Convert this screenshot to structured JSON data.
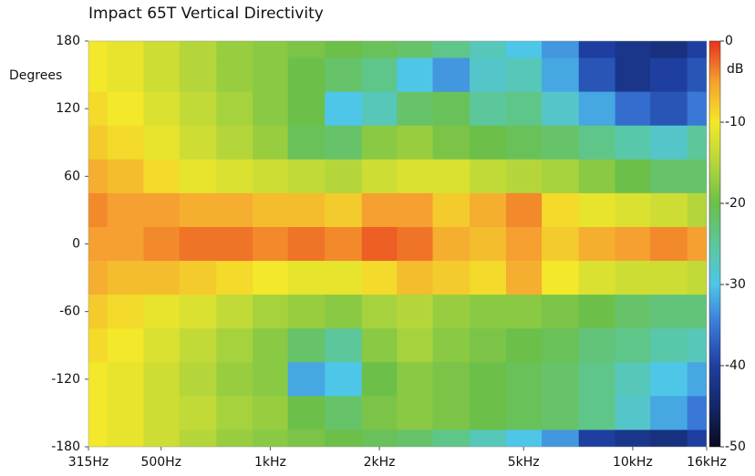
{
  "chart_data": {
    "type": "heatmap",
    "title": "Impact 65T Vertical Directivity",
    "y_label": "Degrees",
    "colorbar_label": "dB",
    "x_scale": "log",
    "xlim": [
      315,
      16000
    ],
    "xticks": [
      {
        "value": 315,
        "label": "315Hz"
      },
      {
        "value": 500,
        "label": "500Hz"
      },
      {
        "value": 1000,
        "label": "1kHz"
      },
      {
        "value": 2000,
        "label": "2kHz"
      },
      {
        "value": 5000,
        "label": "5kHz"
      },
      {
        "value": 10000,
        "label": "10kHz"
      },
      {
        "value": 16000,
        "label": "16kHz"
      }
    ],
    "ylim": [
      -180,
      180
    ],
    "yticks": [
      180,
      120,
      60,
      0,
      -60,
      -120,
      -180
    ],
    "zlim": [
      -50,
      0
    ],
    "zticks": [
      0,
      -10,
      -20,
      -30,
      -40,
      -50
    ],
    "colorscale": [
      [
        -50,
        "#0a0a22"
      ],
      [
        -45,
        "#142868"
      ],
      [
        -40,
        "#1e3fa0"
      ],
      [
        -35,
        "#3a78d8"
      ],
      [
        -30,
        "#4ec6e8"
      ],
      [
        -25,
        "#5cc79a"
      ],
      [
        -20,
        "#6cc04a"
      ],
      [
        -15,
        "#b5d63a"
      ],
      [
        -10,
        "#f3e82a"
      ],
      [
        -5,
        "#f5a030"
      ],
      [
        0,
        "#e8331c"
      ]
    ],
    "x": [
      315,
      400,
      500,
      630,
      800,
      1000,
      1250,
      1600,
      2000,
      2500,
      3150,
      4000,
      5000,
      6300,
      8000,
      10000,
      12500,
      16000
    ],
    "y": [
      180,
      150,
      120,
      90,
      60,
      30,
      0,
      -30,
      -60,
      -90,
      -120,
      -150,
      -180
    ],
    "z": [
      [
        -10,
        -11,
        -13,
        -15,
        -17,
        -18,
        -19,
        -20,
        -21,
        -22,
        -24,
        -27,
        -30,
        -33,
        -40,
        -42,
        -43,
        -40
      ],
      [
        -10,
        -11,
        -13,
        -15,
        -17,
        -18,
        -20,
        -22,
        -24,
        -30,
        -33,
        -28,
        -27,
        -32,
        -38,
        -42,
        -40,
        -38
      ],
      [
        -9,
        -10,
        -12,
        -14,
        -16,
        -18,
        -20,
        -30,
        -27,
        -22,
        -21,
        -25,
        -24,
        -28,
        -32,
        -36,
        -38,
        -35
      ],
      [
        -8,
        -9,
        -11,
        -13,
        -15,
        -17,
        -21,
        -22,
        -18,
        -17,
        -19,
        -20,
        -21,
        -22,
        -24,
        -26,
        -28,
        -25
      ],
      [
        -6,
        -7,
        -9,
        -11,
        -12,
        -13,
        -14,
        -15,
        -13,
        -12,
        -12,
        -14,
        -15,
        -16,
        -18,
        -20,
        -22,
        -22
      ],
      [
        -4,
        -5,
        -5,
        -6,
        -6,
        -7,
        -7,
        -8,
        -5,
        -5,
        -8,
        -6,
        -4,
        -9,
        -11,
        -12,
        -13,
        -15
      ],
      [
        -5,
        -5,
        -4,
        -3,
        -3,
        -4,
        -3,
        -4,
        -2,
        -3,
        -6,
        -7,
        -5,
        -8,
        -6,
        -5,
        -4,
        -5
      ],
      [
        -6,
        -7,
        -7,
        -8,
        -9,
        -10,
        -11,
        -11,
        -9,
        -7,
        -8,
        -9,
        -6,
        -10,
        -12,
        -13,
        -13,
        -14
      ],
      [
        -8,
        -9,
        -11,
        -12,
        -14,
        -16,
        -17,
        -18,
        -16,
        -15,
        -17,
        -18,
        -18,
        -19,
        -20,
        -22,
        -23,
        -23
      ],
      [
        -9,
        -10,
        -12,
        -14,
        -16,
        -18,
        -22,
        -25,
        -18,
        -16,
        -18,
        -19,
        -20,
        -21,
        -23,
        -24,
        -26,
        -27
      ],
      [
        -10,
        -11,
        -13,
        -15,
        -17,
        -18,
        -32,
        -30,
        -20,
        -18,
        -19,
        -20,
        -21,
        -22,
        -24,
        -27,
        -30,
        -32
      ],
      [
        -10,
        -11,
        -13,
        -14,
        -16,
        -17,
        -20,
        -22,
        -19,
        -18,
        -19,
        -20,
        -21,
        -22,
        -24,
        -28,
        -32,
        -35
      ],
      [
        -10,
        -11,
        -13,
        -15,
        -17,
        -18,
        -19,
        -20,
        -21,
        -22,
        -24,
        -27,
        -30,
        -33,
        -40,
        -42,
        -43,
        -40
      ]
    ]
  }
}
